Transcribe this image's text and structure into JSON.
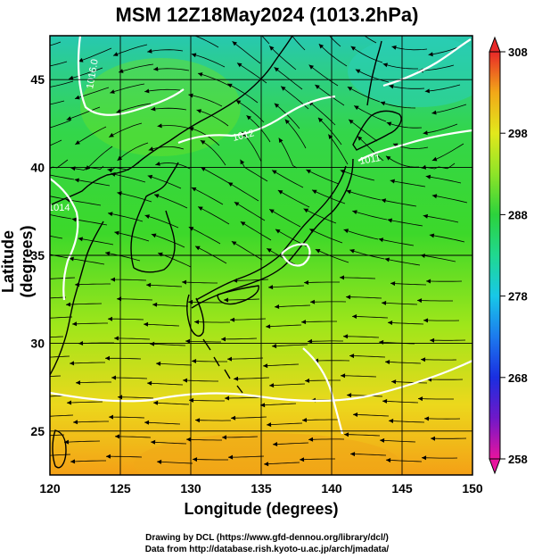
{
  "title": "MSM 12Z18May2024 (1013.2hPa)",
  "x_axis": {
    "label": "Longitude (degrees)",
    "min": 120,
    "max": 150,
    "ticks": [
      "120",
      "125",
      "130",
      "135",
      "140",
      "145",
      "150"
    ]
  },
  "y_axis": {
    "label": "Latitude  (degrees)",
    "min": 22.5,
    "max": 47.5,
    "ticks": [
      "25",
      "30",
      "35",
      "40",
      "45"
    ]
  },
  "colorbar": {
    "min": 258,
    "max": 308,
    "ticks": [
      "308",
      "298",
      "288",
      "278",
      "268",
      "258"
    ]
  },
  "credits": {
    "line1": "Drawing by DCL (https://www.gfd-dennou.org/library/dcl/)",
    "line2": "Data from http://database.rish.kyoto-u.ac.jp/arch/jmadata/"
  },
  "contour_labels": [
    "1016.0",
    "1014",
    "1012",
    "1011"
  ],
  "colors": {
    "frame": "#000000",
    "contour": "#ffffff",
    "streamline": "#000000"
  }
}
